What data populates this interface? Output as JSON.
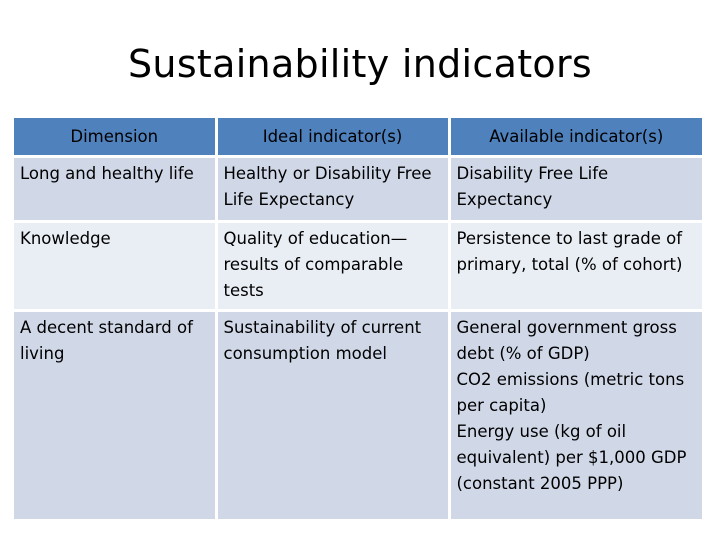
{
  "slide": {
    "title": "Sustainability indicators"
  },
  "table": {
    "headers": [
      "Dimension",
      "Ideal indicator(s)",
      "Available indicator(s)"
    ],
    "rows": [
      {
        "dimension": "Long and healthy life",
        "ideal": "Healthy or Disability Free Life Expectancy",
        "available": [
          "Disability Free Life Expectancy"
        ]
      },
      {
        "dimension": "Knowledge",
        "ideal": "Quality of education—results of comparable tests",
        "available": [
          "Persistence to last grade of primary, total (% of cohort)"
        ]
      },
      {
        "dimension": "A decent standard of living",
        "ideal": "Sustainability of current consumption model",
        "available": [
          "General government gross debt (% of GDP)",
          "CO2 emissions (metric tons per capita)",
          "Energy use (kg of oil equivalent) per $1,000 GDP (constant 2005 PPP)"
        ]
      }
    ]
  },
  "colors": {
    "header_bg": "#4f81bd",
    "row_dark": "#d0d8e8",
    "row_light": "#e9edf4"
  }
}
